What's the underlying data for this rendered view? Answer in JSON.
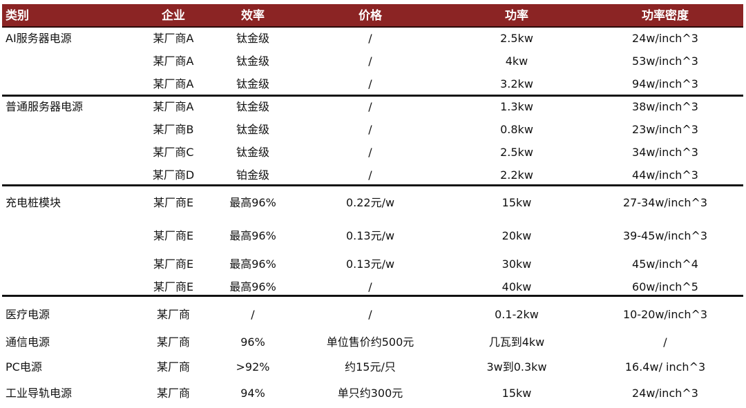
{
  "headers": [
    "类别",
    "企业",
    "效率",
    "价格",
    "功率",
    "功率密度"
  ],
  "header_color": "#8B2424",
  "groups": [
    {
      "category": "AI服务器电源",
      "rows": [
        [
          "某厂商A",
          "钛金级",
          "/",
          "2.5kw",
          "24w/inch^3"
        ],
        [
          "某厂商A",
          "钛金级",
          "/",
          "4kw",
          "53w/inch^3"
        ],
        [
          "某厂商A",
          "钛金级",
          "/",
          "3.2kw",
          "94w/inch^3"
        ]
      ]
    },
    {
      "category": "普通服务器电源",
      "rows": [
        [
          "某厂商A",
          "钛金级",
          "/",
          "1.3kw",
          "38w/inch^3"
        ],
        [
          "某厂商B",
          "钛金级",
          "/",
          "0.8kw",
          "23w/inch^3"
        ],
        [
          "某厂商C",
          "钛金级",
          "/",
          "2.5kw",
          "34w/inch^3"
        ],
        [
          "某厂商D",
          "铂金级",
          "/",
          "2.2kw",
          "44w/inch^3"
        ]
      ]
    },
    {
      "category": "充电桩模块",
      "rows": [
        [
          "某厂商E",
          "最高96%",
          "0.22元/w",
          "15kw",
          "27-34w/inch^3"
        ],
        [
          "某厂商E",
          "最高96%",
          "0.13元/w",
          "20kw",
          "39-45w/inch^3"
        ],
        [
          "某厂商E",
          "最高96%",
          "0.13元/w",
          "30kw",
          "45w/inch^4"
        ],
        [
          "某厂商E",
          "最高96%",
          "/",
          "40kw",
          "60w/inch^5"
        ]
      ]
    },
    {
      "category": "",
      "rows": [
        [
          "医疗电源",
          "某厂商",
          "/",
          "/",
          "0.1-2kw",
          "10-20w/inch^3"
        ],
        [
          "通信电源",
          "某厂商",
          "96%",
          "单位售价约500元",
          "几瓦到4kw",
          "/"
        ],
        [
          "PC电源",
          "某厂商",
          ">92%",
          "约15元/只",
          "3w到0.3kw",
          "16.4w/ inch^3"
        ],
        [
          "工业导轨电源",
          "某厂商",
          "94%",
          "单只约300元",
          "15kw",
          "24w/inch^3"
        ]
      ]
    }
  ]
}
